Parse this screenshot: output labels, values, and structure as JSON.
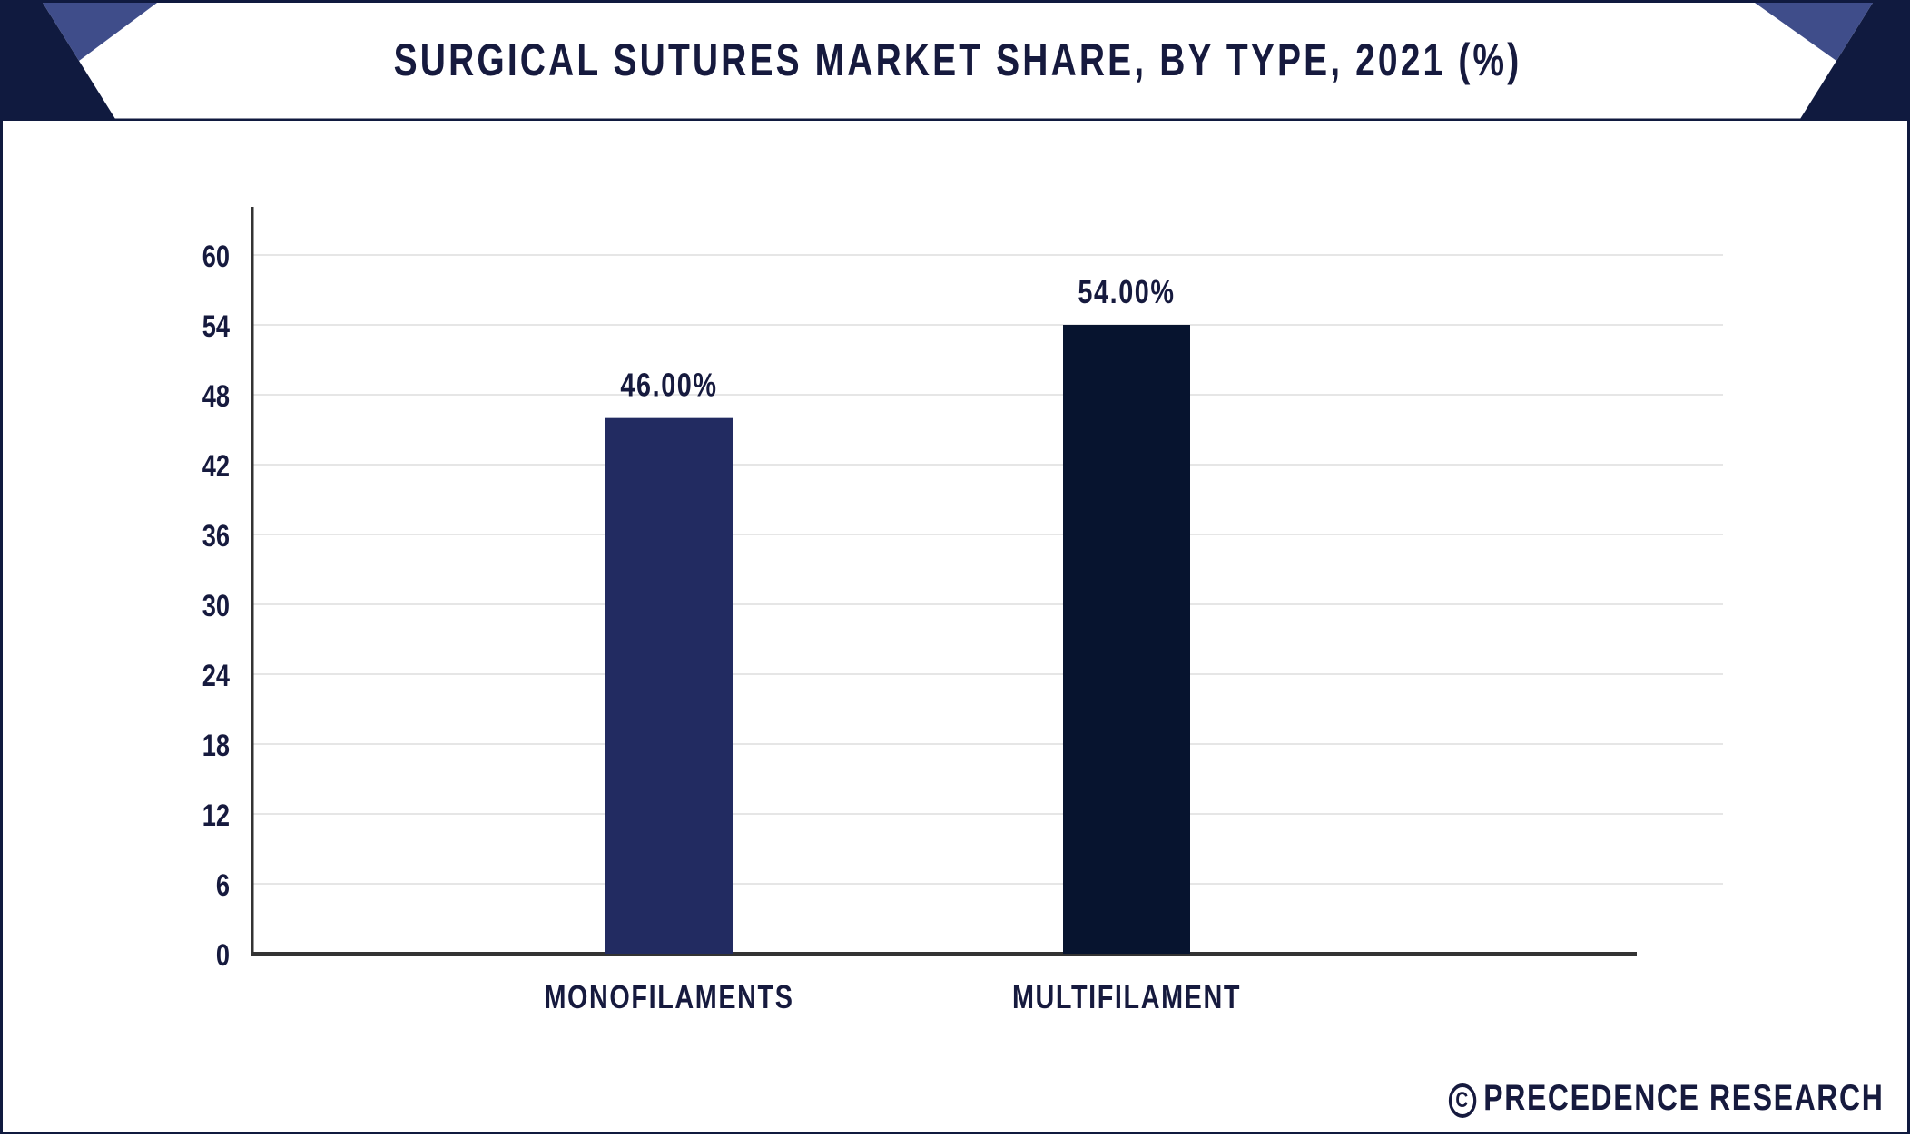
{
  "header": {
    "title": "SURGICAL SUTURES MARKET SHARE, BY TYPE, 2021 (%)"
  },
  "footer": {
    "copyright_icon": "copyright-icon",
    "brand": "PRECEDENCE RESEARCH"
  },
  "colors": {
    "frame": "#101a3f",
    "corner_accent": "#3f4d8a",
    "title_text": "#161a3e",
    "bar_monofilaments": "#222b61",
    "bar_multifilament": "#07142f",
    "gridline": "#e6e6e6",
    "axis": "#333333"
  },
  "chart_data": {
    "type": "bar",
    "title": "SURGICAL SUTURES MARKET SHARE, BY TYPE, 2021 (%)",
    "categories": [
      "MONOFILAMENTS",
      "MULTIFILAMENT"
    ],
    "values": [
      46.0,
      54.0
    ],
    "value_labels": [
      "46.00%",
      "54.00%"
    ],
    "xlabel": "",
    "ylabel": "",
    "ylim": [
      0,
      60
    ],
    "yticks": [
      0,
      6,
      12,
      18,
      24,
      30,
      36,
      42,
      48,
      54,
      60
    ],
    "grid": true,
    "legend": "none"
  }
}
